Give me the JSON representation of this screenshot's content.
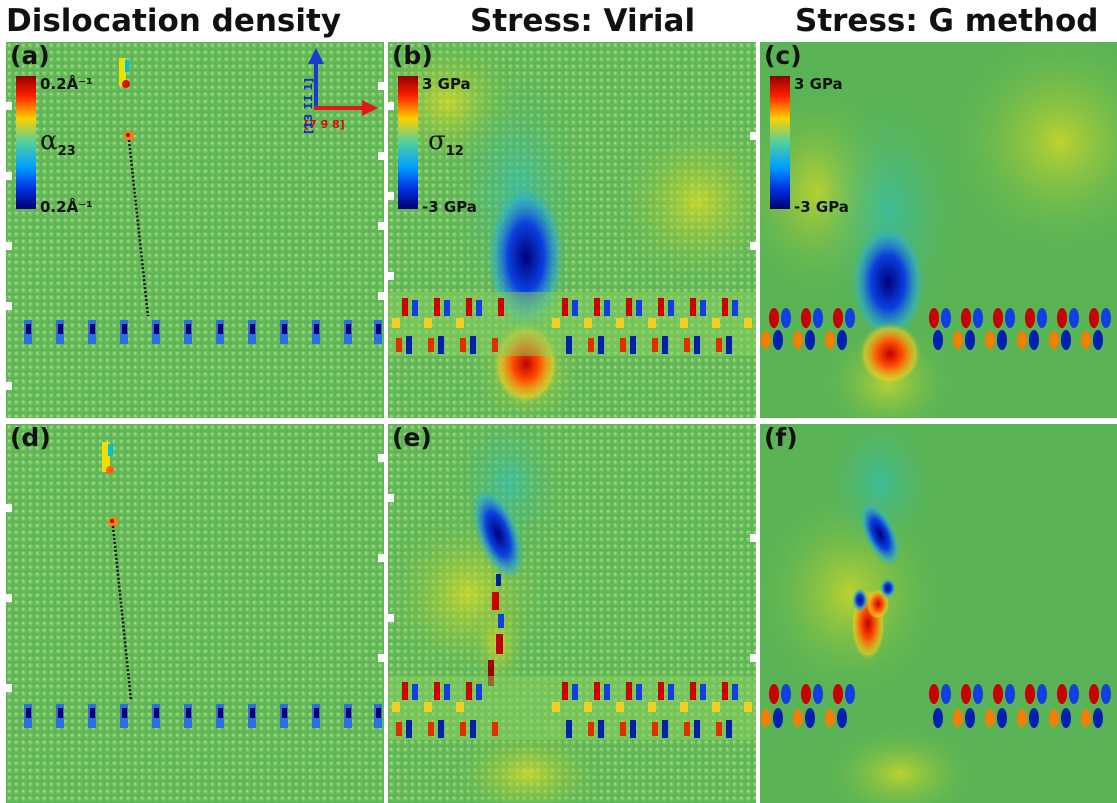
{
  "titles": {
    "col1": "Dislocation density",
    "col2": "Stress: Virial",
    "col3": "Stress: G method"
  },
  "panels": {
    "a": "(a)",
    "b": "(b)",
    "c": "(c)",
    "d": "(d)",
    "e": "(e)",
    "f": "(f)"
  },
  "colorbar_a": {
    "symbol": "α",
    "subscript": "23",
    "top": "0.2Å⁻¹",
    "bottom": "0.2Å⁻¹"
  },
  "colorbar_b": {
    "symbol": "σ",
    "subscript": "12",
    "top": "3 GPa",
    "bottom": "-3 GPa"
  },
  "colorbar_c": {
    "top": "3 GPa",
    "bottom": "-3 GPa"
  },
  "axes_indicator": {
    "horizontal": "[7̄ 9̄ 8̄]",
    "vertical": "[13 1̄1̄ 1]",
    "colors": {
      "horizontal": "#e01818",
      "vertical": "#1a3cc8"
    }
  },
  "colors": {
    "background_green": "#5ab455",
    "jet": [
      "#00008f",
      "#0050ff",
      "#00d0ff",
      "#5ab455",
      "#f0f000",
      "#ff6000",
      "#8f0000"
    ]
  }
}
